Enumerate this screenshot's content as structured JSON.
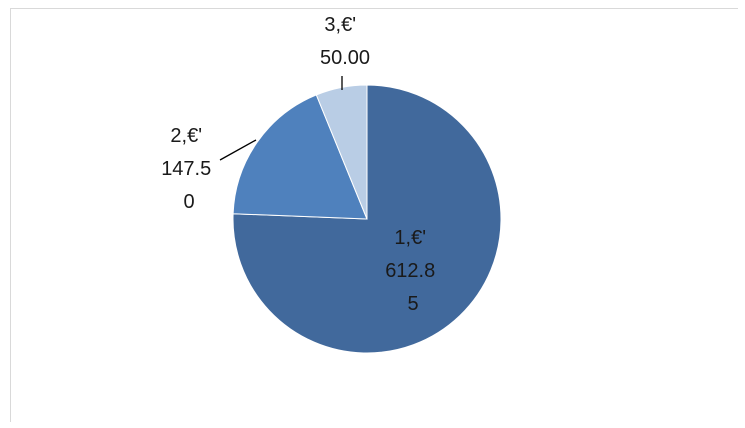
{
  "chart_data": {
    "type": "pie",
    "title": "",
    "categories": [
      "1",
      "2",
      "3"
    ],
    "values": [
      612.85,
      147.5,
      50.0
    ],
    "currency_symbol": "€'",
    "data_labels": [
      {
        "category": "1",
        "lines": [
          "1,€'",
          "612.8",
          "5"
        ]
      },
      {
        "category": "2",
        "lines": [
          "2,€'",
          "147.5",
          "0"
        ]
      },
      {
        "category": "3",
        "lines": [
          "3,€'",
          "50.00"
        ]
      }
    ],
    "colors": [
      "#41699c",
      "#4f81bd",
      "#b9cde5"
    ],
    "legend": "none",
    "start_angle_deg": 0,
    "direction": "clockwise"
  }
}
